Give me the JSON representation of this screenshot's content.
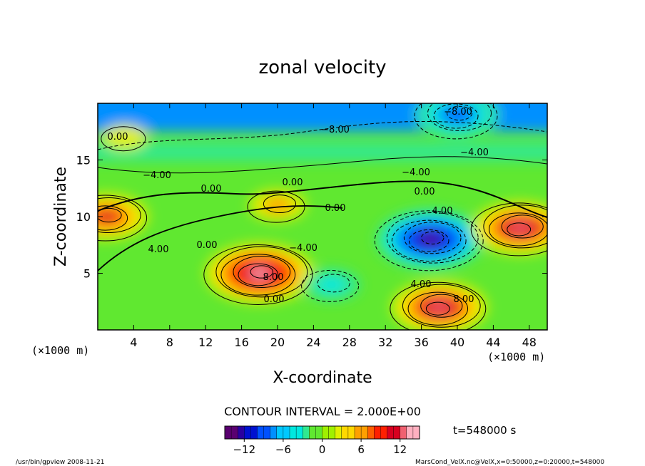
{
  "chart_data": {
    "type": "heatmap",
    "title": "zonal velocity",
    "xlabel": "X-coordinate",
    "ylabel": "Z-coordinate",
    "x_unit": "(×1000 m)",
    "y_unit": "(×1000 m)",
    "xlim": [
      0,
      50
    ],
    "ylim": [
      0,
      20
    ],
    "xticks": [
      "4",
      "8",
      "12",
      "16",
      "20",
      "24",
      "28",
      "32",
      "36",
      "40",
      "44",
      "48"
    ],
    "xtick_values": [
      4,
      8,
      12,
      16,
      20,
      24,
      28,
      32,
      36,
      40,
      44,
      48
    ],
    "yticks": [
      "5",
      "10",
      "15"
    ],
    "ytick_values": [
      5,
      10,
      15
    ],
    "contour_interval_label": "CONTOUR INTERVAL = 2.000E+00",
    "time_label": "t=548000 s",
    "colorbar": {
      "range": [
        -15,
        15
      ],
      "ticks": [
        "−12",
        "−6",
        "0",
        "6",
        "12"
      ],
      "tick_values": [
        -12,
        -6,
        0,
        6,
        12
      ],
      "colors": [
        "#5a0070",
        "#2a00a0",
        "#0010d0",
        "#0050ff",
        "#0090ff",
        "#00c8ff",
        "#00e8e0",
        "#30e890",
        "#60e830",
        "#a0f000",
        "#e0f000",
        "#ffd800",
        "#ffa000",
        "#ff6000",
        "#ff2000",
        "#d80020",
        "#f06070",
        "#ffb0c0"
      ]
    },
    "contour_labels": [
      "0.00",
      "−8.00",
      "−8.00",
      "−4.00",
      "−4.00",
      "−4.00",
      "0.00",
      "0.00",
      "0.00",
      "4.00",
      "0.00",
      "0.00",
      "4.00",
      "−4.00",
      "8.00",
      "0.00",
      "4.00",
      "8.00"
    ],
    "features": [
      {
        "x": 3,
        "z": 17,
        "value": 0
      },
      {
        "x": 20,
        "z": 11,
        "value": 6
      },
      {
        "x": 18,
        "z": 5,
        "value": 14
      },
      {
        "x": 37,
        "z": 8,
        "value": -14
      },
      {
        "x": 47,
        "z": 9,
        "value": 13
      },
      {
        "x": 38,
        "z": 2,
        "value": 13
      },
      {
        "x": 40,
        "z": 19,
        "value": -10
      },
      {
        "x": 26,
        "z": 4,
        "value": -4
      },
      {
        "x": 1,
        "z": 10,
        "value": 10
      }
    ]
  },
  "footer": {
    "left": "/usr/bin/gpview   2008-11-21",
    "right": "MarsCond_VelX.nc@VelX,x=0:50000,z=0:20000,t=548000"
  }
}
